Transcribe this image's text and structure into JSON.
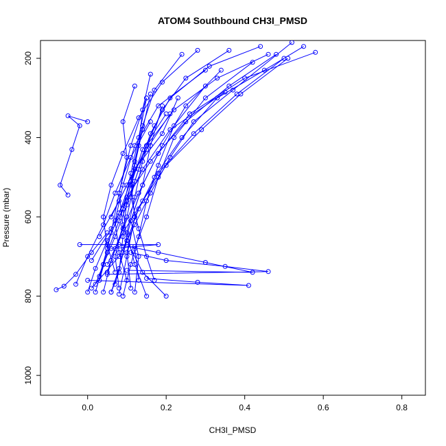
{
  "chart_data": {
    "type": "line",
    "title": "ATOM4 Southbound CH3I_PMSD",
    "xlabel": "CH3I_PMSD",
    "ylabel": "Pressure (mbar)",
    "xlim": [
      -0.12,
      0.86
    ],
    "ylim": [
      1050,
      155
    ],
    "y_reversed": true,
    "x_ticks": [
      0.0,
      0.2,
      0.4,
      0.6,
      0.8
    ],
    "x_tick_labels": [
      "0.0",
      "0.2",
      "0.4",
      "0.6",
      "0.8"
    ],
    "y_ticks": [
      200,
      400,
      600,
      800,
      1000
    ],
    "y_tick_labels": [
      "200",
      "400",
      "600",
      "800",
      "1000"
    ],
    "grid": false,
    "legend": "none",
    "series_color": "#0000ff",
    "marker": "open-circle",
    "series": [
      {
        "x": [
          -0.08,
          -0.06,
          -0.03,
          0.01,
          0.05
        ],
        "y": [
          784,
          775,
          745,
          690,
          640
        ]
      },
      {
        "x": [
          0.06,
          0.08,
          0.09,
          0.1,
          0.12,
          0.14,
          0.16
        ],
        "y": [
          790,
          740,
          650,
          560,
          470,
          380,
          290
        ]
      },
      {
        "x": [
          0.02,
          0.04,
          0.06,
          0.08,
          0.11,
          0.15
        ],
        "y": [
          770,
          720,
          640,
          540,
          420,
          300
        ]
      },
      {
        "x": [
          -0.05,
          -0.07,
          -0.04,
          -0.02,
          -0.05,
          0.0
        ],
        "y": [
          545,
          520,
          430,
          370,
          345,
          360
        ]
      },
      {
        "x": [
          0.08,
          0.1,
          0.12,
          0.17,
          0.24,
          0.33,
          0.45,
          0.55
        ],
        "y": [
          795,
          700,
          600,
          500,
          400,
          300,
          230,
          170
        ]
      },
      {
        "x": [
          0.03,
          0.05,
          0.08,
          0.11,
          0.14,
          0.2
        ],
        "y": [
          760,
          690,
          610,
          520,
          430,
          340
        ]
      },
      {
        "x": [
          0.09,
          0.11,
          0.13,
          0.15,
          0.18,
          0.22,
          0.3
        ],
        "y": [
          800,
          720,
          650,
          560,
          470,
          370,
          270
        ]
      },
      {
        "x": [
          0.0,
          0.02,
          0.05,
          0.09,
          0.14,
          0.21,
          0.35
        ],
        "y": [
          790,
          730,
          660,
          580,
          480,
          380,
          285
        ]
      },
      {
        "x": [
          0.12,
          0.13,
          0.11,
          0.14,
          0.16,
          0.19
        ],
        "y": [
          790,
          700,
          610,
          520,
          420,
          320
        ]
      },
      {
        "x": [
          0.05,
          0.07,
          0.1,
          0.12,
          0.15,
          0.19,
          0.25,
          0.36
        ],
        "y": [
          740,
          680,
          600,
          510,
          420,
          330,
          250,
          180
        ]
      },
      {
        "x": [
          -0.03,
          0.0,
          0.04,
          0.07,
          0.11,
          0.16
        ],
        "y": [
          770,
          700,
          620,
          540,
          450,
          360
        ]
      },
      {
        "x": [
          0.15,
          0.12,
          0.1,
          0.12,
          0.14,
          0.17
        ],
        "y": [
          800,
          720,
          640,
          550,
          460,
          370
        ]
      },
      {
        "x": [
          0.2,
          0.14,
          0.1,
          0.09,
          0.11,
          0.13,
          0.15
        ],
        "y": [
          800,
          740,
          660,
          580,
          490,
          400,
          300
        ]
      },
      {
        "x": [
          0.1,
          0.42,
          0.3,
          0.18,
          0.08
        ],
        "y": [
          735,
          740,
          715,
          690,
          670
        ]
      },
      {
        "x": [
          0.05,
          0.46,
          0.35,
          0.2,
          0.11
        ],
        "y": [
          745,
          738,
          725,
          710,
          690
        ]
      },
      {
        "x": [
          0.0,
          0.41,
          0.28,
          0.15
        ],
        "y": [
          760,
          773,
          765,
          755
        ]
      },
      {
        "x": [
          -0.02,
          0.18,
          0.12,
          0.06
        ],
        "y": [
          670,
          670,
          675,
          680
        ]
      },
      {
        "x": [
          0.01,
          0.08,
          0.12,
          0.16,
          0.21,
          0.27,
          0.37,
          0.52
        ],
        "y": [
          780,
          700,
          620,
          540,
          450,
          360,
          280,
          160
        ]
      },
      {
        "x": [
          0.04,
          0.06,
          0.09,
          0.13,
          0.18,
          0.26,
          0.4,
          0.58
        ],
        "y": [
          790,
          710,
          630,
          540,
          440,
          340,
          250,
          185
        ]
      },
      {
        "x": [
          0.07,
          0.09,
          0.11,
          0.14,
          0.19,
          0.25,
          0.34
        ],
        "y": [
          770,
          690,
          610,
          520,
          420,
          320,
          230
        ]
      },
      {
        "x": [
          0.06,
          0.08,
          0.1,
          0.13,
          0.18,
          0.27,
          0.38,
          0.5
        ],
        "y": [
          790,
          730,
          660,
          580,
          490,
          390,
          290,
          200
        ]
      },
      {
        "x": [
          0.11,
          0.1,
          0.12,
          0.11,
          0.13,
          0.14,
          0.16
        ],
        "y": [
          780,
          690,
          600,
          510,
          420,
          330,
          240
        ]
      },
      {
        "x": [
          0.03,
          0.05,
          0.04,
          0.06,
          0.09,
          0.13,
          0.19,
          0.28
        ],
        "y": [
          750,
          680,
          600,
          520,
          440,
          350,
          260,
          180
        ]
      },
      {
        "x": [
          0.13,
          0.12,
          0.15,
          0.18,
          0.22,
          0.3,
          0.42
        ],
        "y": [
          760,
          680,
          600,
          500,
          400,
          300,
          210
        ]
      },
      {
        "x": [
          0.02,
          0.04,
          0.07,
          0.1,
          0.13,
          0.16,
          0.21,
          0.31,
          0.44
        ],
        "y": [
          790,
          720,
          650,
          570,
          480,
          390,
          300,
          220,
          170
        ]
      },
      {
        "x": [
          0.17,
          0.15,
          0.13,
          0.11,
          0.12,
          0.14,
          0.17,
          0.24
        ],
        "y": [
          760,
          700,
          630,
          550,
          460,
          370,
          280,
          190
        ]
      },
      {
        "x": [
          0.08,
          0.07,
          0.09,
          0.08,
          0.1,
          0.09,
          0.12
        ],
        "y": [
          780,
          700,
          620,
          540,
          450,
          360,
          270
        ]
      },
      {
        "x": [
          0.05,
          0.09,
          0.14,
          0.2,
          0.29,
          0.39,
          0.51
        ],
        "y": [
          720,
          640,
          560,
          470,
          380,
          290,
          200
        ]
      },
      {
        "x": [
          0.01,
          0.06,
          0.1,
          0.16,
          0.25,
          0.36,
          0.48
        ],
        "y": [
          710,
          630,
          550,
          460,
          360,
          270,
          190
        ]
      },
      {
        "x": [
          0.03,
          0.08,
          0.12,
          0.19,
          0.23
        ],
        "y": [
          650,
          560,
          480,
          390,
          300
        ]
      },
      {
        "x": [
          0.1,
          0.08,
          0.07,
          0.09,
          0.12,
          0.18,
          0.3
        ],
        "y": [
          760,
          690,
          610,
          520,
          420,
          320,
          230
        ]
      },
      {
        "x": [
          0.07,
          0.05,
          0.08,
          0.11,
          0.15,
          0.22,
          0.33,
          0.46
        ],
        "y": [
          740,
          670,
          590,
          510,
          420,
          330,
          250,
          190
        ]
      },
      {
        "x": [
          0.06,
          0.1,
          0.15,
          0.21
        ],
        "y": [
          600,
          520,
          430,
          340
        ]
      }
    ]
  }
}
